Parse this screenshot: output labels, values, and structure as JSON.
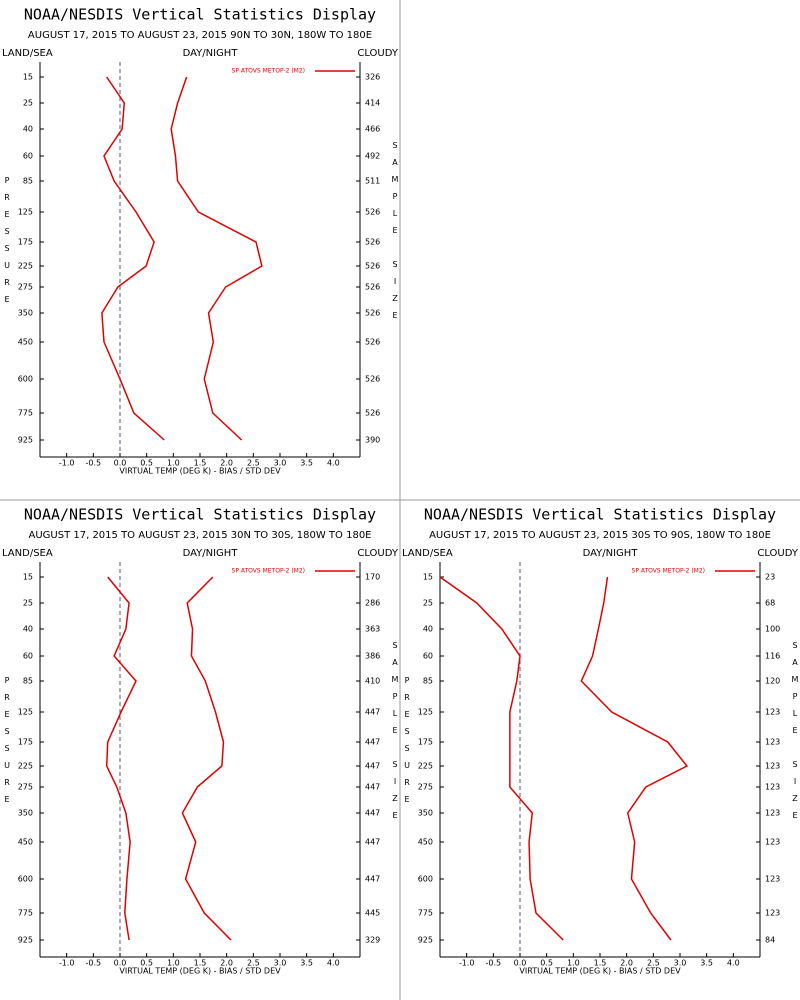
{
  "chart_data": [
    {
      "type": "profile",
      "title": "NOAA/NESDIS Vertical Statistics Display",
      "subtitle": "AUGUST 17, 2015 TO AUGUST 23, 2015  90N TO 30N, 180W TO 180E",
      "land_sea": "LAND/SEA",
      "day_night": "DAY/NIGHT",
      "cloudy": "CLOUDY",
      "xlabel": "VIRTUAL TEMP (DEG K) - BIAS / STD DEV",
      "ylabel": "PRESSURE",
      "y2label": "SAMPLE SIZE",
      "categories": [
        15,
        25,
        40,
        60,
        85,
        125,
        175,
        225,
        275,
        350,
        450,
        600,
        775,
        925
      ],
      "sample_sizes": [
        326,
        414,
        466,
        492,
        511,
        526,
        526,
        526,
        526,
        526,
        526,
        526,
        526,
        390
      ],
      "series": [
        {
          "name": "SP ATOVS METOP-2 (M2)",
          "color": "#e00000",
          "values": [
            -0.25,
            0.08,
            0.04,
            -0.3,
            -0.11,
            0.3,
            0.64,
            0.49,
            -0.04,
            -0.34,
            -0.3,
            0.0,
            0.26,
            0.83
          ]
        },
        {
          "color": "#e00000",
          "values": [
            1.25,
            1.08,
            0.96,
            1.04,
            1.08,
            1.47,
            2.55,
            2.66,
            1.98,
            1.66,
            1.75,
            1.58,
            1.74,
            2.28
          ]
        }
      ],
      "xlim": [
        -1.5,
        4.5
      ],
      "xticks": [
        {
          "value": -1,
          "label": "-1.0"
        },
        -0.5,
        {
          "value": 0,
          "label": "0.0"
        },
        0.5,
        {
          "value": 1,
          "label": "1.0"
        },
        1.5,
        {
          "value": 2,
          "label": "2.0"
        },
        2.5,
        {
          "value": 3,
          "label": "3.0"
        },
        3.5,
        {
          "value": 4,
          "label": "4.0"
        }
      ]
    },
    {
      "type": "profile",
      "title": "NOAA/NESDIS Vertical Statistics Display",
      "subtitle": "AUGUST 17, 2015 TO AUGUST 23, 2015  30N TO 30S, 180W TO 180E",
      "land_sea": "LAND/SEA",
      "day_night": "DAY/NIGHT",
      "cloudy": "CLOUDY",
      "xlabel": "VIRTUAL TEMP (DEG K) - BIAS / STD DEV",
      "ylabel": "PRESSURE",
      "y2label": "SAMPLE SIZE",
      "categories": [
        15,
        25,
        40,
        60,
        85,
        125,
        175,
        225,
        275,
        350,
        450,
        600,
        775,
        925
      ],
      "sample_sizes": [
        170,
        286,
        363,
        386,
        410,
        447,
        447,
        447,
        447,
        447,
        447,
        447,
        445,
        329
      ],
      "series": [
        {
          "name": "SP ATOVS METOP-2 (M2)",
          "color": "#e00000",
          "values": [
            -0.23,
            0.17,
            0.11,
            -0.11,
            0.3,
            0.02,
            -0.23,
            -0.25,
            -0.06,
            0.11,
            0.19,
            0.13,
            0.09,
            0.17
          ]
        },
        {
          "color": "#e00000",
          "values": [
            1.74,
            1.26,
            1.36,
            1.34,
            1.6,
            1.79,
            1.94,
            1.91,
            1.45,
            1.17,
            1.42,
            1.23,
            1.58,
            2.08
          ]
        }
      ],
      "xlim": [
        -1.5,
        4.5
      ],
      "xticks": [
        {
          "value": -1,
          "label": "-1.0"
        },
        -0.5,
        {
          "value": 0,
          "label": "0.0"
        },
        0.5,
        {
          "value": 1,
          "label": "1.0"
        },
        1.5,
        {
          "value": 2,
          "label": "2.0"
        },
        2.5,
        {
          "value": 3,
          "label": "3.0"
        },
        3.5,
        {
          "value": 4,
          "label": "4.0"
        }
      ]
    },
    {
      "type": "profile",
      "title": "NOAA/NESDIS Vertical Statistics Display",
      "subtitle": "AUGUST 17, 2015 TO AUGUST 23, 2015  30S TO 90S, 180W TO 180E",
      "land_sea": "LAND/SEA",
      "day_night": "DAY/NIGHT",
      "cloudy": "CLOUDY",
      "xlabel": "VIRTUAL TEMP (DEG K) - BIAS / STD DEV",
      "ylabel": "PRESSURE",
      "y2label": "SAMPLE SIZE",
      "categories": [
        15,
        25,
        40,
        60,
        85,
        125,
        175,
        225,
        275,
        350,
        450,
        600,
        775,
        925
      ],
      "sample_sizes": [
        23,
        68,
        100,
        116,
        120,
        123,
        123,
        123,
        123,
        123,
        123,
        123,
        123,
        84
      ],
      "series": [
        {
          "name": "SP ATOVS METOP-2 (M2)",
          "color": "#e00000",
          "values": [
            -1.5,
            -0.81,
            -0.34,
            0.0,
            -0.06,
            -0.19,
            -0.19,
            -0.19,
            -0.19,
            0.23,
            0.17,
            0.19,
            0.3,
            0.81
          ]
        },
        {
          "color": "#e00000",
          "values": [
            1.64,
            1.57,
            1.47,
            1.36,
            1.15,
            1.72,
            2.77,
            3.13,
            2.36,
            2.02,
            2.15,
            2.09,
            2.45,
            2.83
          ]
        }
      ],
      "xlim": [
        -1.5,
        4.5
      ],
      "xticks": [
        {
          "value": -1,
          "label": "-1.0"
        },
        -0.5,
        {
          "value": 0,
          "label": "0.0"
        },
        0.5,
        {
          "value": 1,
          "label": "1.0"
        },
        1.5,
        {
          "value": 2,
          "label": "2.0"
        },
        2.5,
        {
          "value": 3,
          "label": "3.0"
        },
        3.5,
        {
          "value": 4,
          "label": "4.0"
        }
      ]
    }
  ]
}
